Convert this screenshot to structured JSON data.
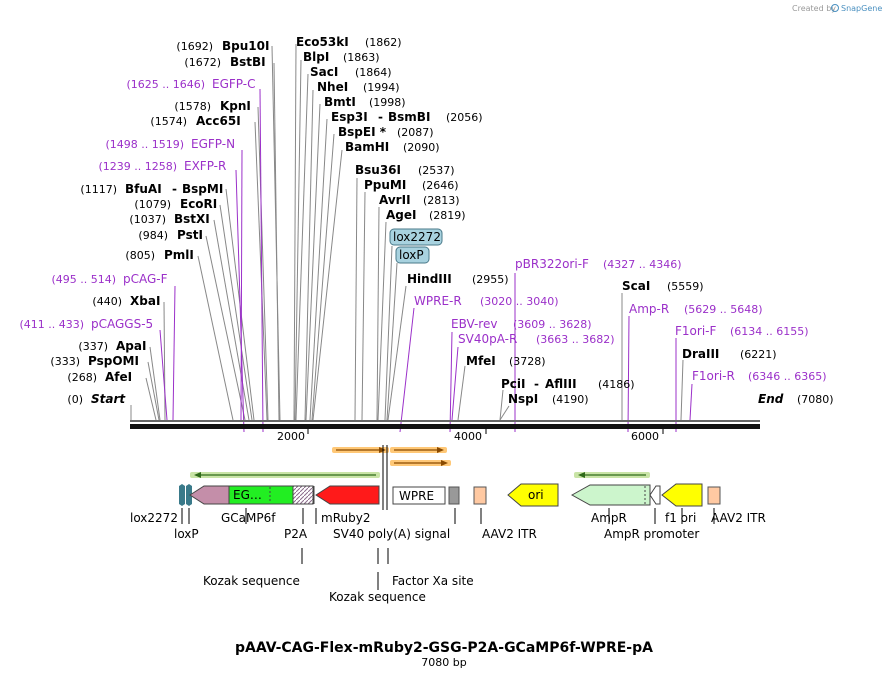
{
  "credit": {
    "prefix": "Created by",
    "brand": "SnapGene"
  },
  "title": "pAAV-CAG-Flex-mRuby2-GSG-P2A-GCaMP6f-WPRE-pA",
  "subtitle": "7080 bp",
  "ruler": {
    "ticks": [
      "2000",
      "4000",
      "6000"
    ]
  },
  "left_labels": [
    {
      "pos": "(1692)",
      "name": "Bpu10I",
      "type": "site"
    },
    {
      "pos": "(1672)",
      "name": "BstBI",
      "type": "site"
    },
    {
      "pos": "(1625 .. 1646)",
      "name": "EGFP-C",
      "type": "feature"
    },
    {
      "pos": "(1578)",
      "name": "KpnI",
      "type": "site"
    },
    {
      "pos": "(1574)",
      "name": "Acc65I",
      "type": "site"
    },
    {
      "pos": "(1498 .. 1519)",
      "name": "EGFP-N",
      "type": "feature"
    },
    {
      "pos": "(1239 .. 1258)",
      "name": "EXFP-R",
      "type": "feature"
    },
    {
      "pos": "(1117)",
      "name": "BfuAI",
      "name2": "BspMI",
      "type": "site"
    },
    {
      "pos": "(1079)",
      "name": "EcoRI",
      "type": "site"
    },
    {
      "pos": "(1037)",
      "name": "BstXI",
      "type": "site"
    },
    {
      "pos": "(984)",
      "name": "PstI",
      "type": "site"
    },
    {
      "pos": "(805)",
      "name": "PmlI",
      "type": "site"
    },
    {
      "pos": "(495 .. 514)",
      "name": "pCAG-F",
      "type": "feature"
    },
    {
      "pos": "(440)",
      "name": "XbaI",
      "type": "site"
    },
    {
      "pos": "(411 .. 433)",
      "name": "pCAGGS-5",
      "type": "feature"
    },
    {
      "pos": "(337)",
      "name": "ApaI",
      "type": "site"
    },
    {
      "pos": "(333)",
      "name": "PspOMI",
      "type": "site"
    },
    {
      "pos": "(268)",
      "name": "AfeI",
      "type": "site"
    },
    {
      "pos": "(0)",
      "name": "Start",
      "type": "start"
    }
  ],
  "center_labels": [
    {
      "name": "Eco53kI",
      "pos": "(1862)"
    },
    {
      "name": "BlpI",
      "pos": "(1863)"
    },
    {
      "name": "SacI",
      "pos": "(1864)"
    },
    {
      "name": "NheI",
      "pos": "(1994)"
    },
    {
      "name": "BmtI",
      "pos": "(1998)"
    },
    {
      "name": "Esp3I",
      "name2": "BsmBI",
      "pos": "(2056)"
    },
    {
      "name": "BspEI *",
      "pos": "(2087)"
    },
    {
      "name": "BamHI",
      "pos": "(2090)"
    },
    {
      "name": "Bsu36I",
      "pos": "(2537)"
    },
    {
      "name": "PpuMI",
      "pos": "(2646)"
    },
    {
      "name": "AvrII",
      "pos": "(2813)"
    },
    {
      "name": "AgeI",
      "pos": "(2819)"
    }
  ],
  "boxed_labels": [
    "lox2272",
    "loxP"
  ],
  "right_labels": [
    {
      "name": "HindIII",
      "pos": "(2955)",
      "type": "site"
    },
    {
      "name": "pBR322ori-F",
      "pos": "(4327 .. 4346)",
      "type": "feature"
    },
    {
      "name": "WPRE-R",
      "pos": "(3020 .. 3040)",
      "type": "feature"
    },
    {
      "name": "EBV-rev",
      "pos": "(3609 .. 3628)",
      "type": "feature"
    },
    {
      "name": "SV40pA-R",
      "pos": "(3663 .. 3682)",
      "type": "feature"
    },
    {
      "name": "MfeI",
      "pos": "(3728)",
      "type": "site"
    },
    {
      "name": "PciI",
      "name2": "AflIII",
      "pos": "(4186)",
      "type": "site"
    },
    {
      "name": "NspI",
      "pos": "(4190)",
      "type": "site"
    },
    {
      "name": "ScaI",
      "pos": "(5559)",
      "type": "site"
    },
    {
      "name": "Amp-R",
      "pos": "(5629 .. 5648)",
      "type": "feature"
    },
    {
      "name": "F1ori-F",
      "pos": "(6134 .. 6155)",
      "type": "feature"
    },
    {
      "name": "DraIII",
      "pos": "(6221)",
      "type": "site"
    },
    {
      "name": "F1ori-R",
      "pos": "(6346 .. 6365)",
      "type": "feature"
    },
    {
      "name": "End",
      "pos": "(7080)",
      "type": "end"
    }
  ],
  "map_features": {
    "egfp_label": "EG…",
    "wpre": "WPRE",
    "ori": "ori"
  },
  "bottom_labels": {
    "lox2272": "lox2272",
    "loxp": "loxP",
    "gcamp6f": "GCaMP6f",
    "p2a": "P2A",
    "mruby2": "mRuby2",
    "sv40": "SV40 poly(A) signal",
    "wpre": "WPRE",
    "aav2_itr_1": "AAV2 ITR",
    "ampr": "AmpR",
    "ampr_promoter": "AmpR promoter",
    "f1_ori": "f1 ori",
    "aav2_itr_2": "AAV2 ITR",
    "kozak1": "Kozak sequence",
    "kozak2": "Kozak sequence",
    "factor_xa": "Factor Xa site"
  }
}
